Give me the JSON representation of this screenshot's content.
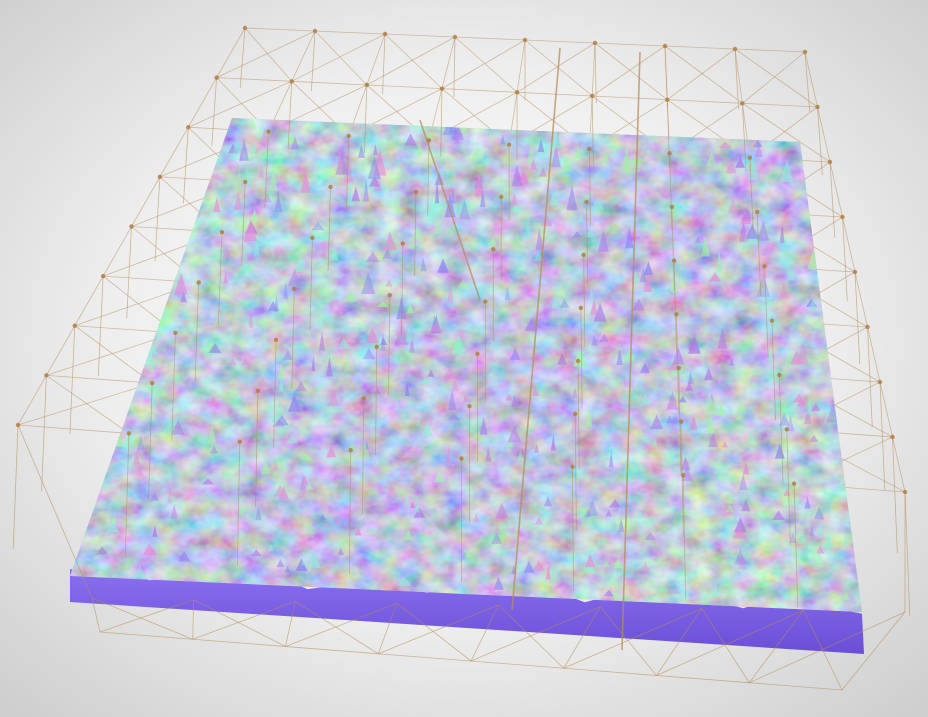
{
  "scene": {
    "subject": "terrain-mesh-with-lattice",
    "colors": {
      "background_center": "#ffffff",
      "background_edge": "#cfcfcf",
      "terrain_base": "#7a5ce6",
      "terrain_base_dark": "#6a4fd6",
      "terrain_blue": "#8f86f0",
      "terrain_cyan": "#8ff0d8",
      "terrain_green": "#a6f2a8",
      "terrain_pink": "#e58fd6",
      "terrain_violet": "#b07ae8",
      "lattice_line": "#b58e5c",
      "lattice_node": "#b07f46"
    }
  }
}
